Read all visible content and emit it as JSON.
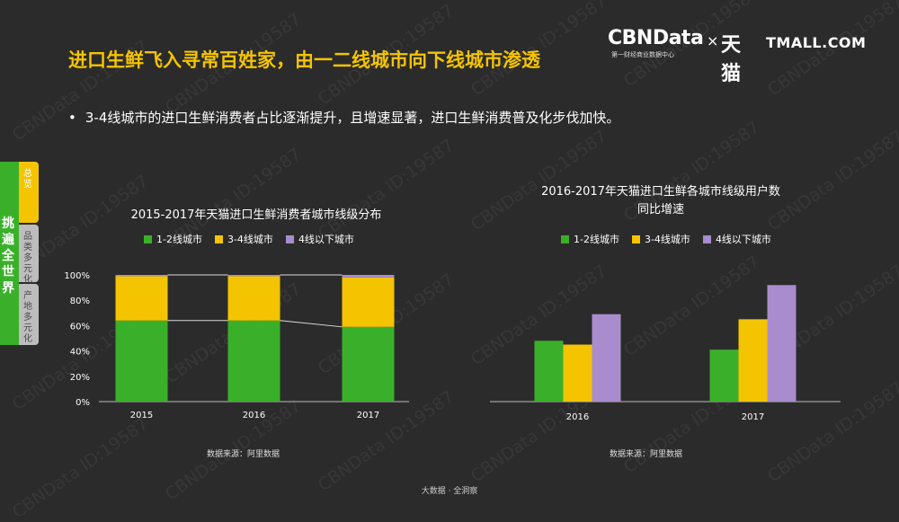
{
  "header": {
    "title": "进口生鲜飞入寻常百姓家，由一二线城市向下线城市渗透",
    "bullet": "3-4线城市的进口生鲜消费者占比逐渐提升，且增速显著，进口生鲜消费普及化步伐加快。",
    "bullet_dot": "•"
  },
  "logo": {
    "cbn": "CBNData",
    "cbn_sub": "第一财经商业数据中心",
    "x": "×",
    "tm": "天猫",
    "tmall": "TMALL.COM"
  },
  "sidebar": {
    "main": "挑遍全世界",
    "tabs": [
      "总览",
      "品类多元化",
      "产地多元化"
    ]
  },
  "watermark": "CBNData ID:19587",
  "colors": {
    "green": "#3ab02a",
    "yellow": "#f5c400",
    "purple": "#a98ccd",
    "title": "#f5c400"
  },
  "chart_data": [
    {
      "type": "bar",
      "stacked": true,
      "title": "2015-2017年天猫进口生鲜消费者城市线级分布",
      "categories": [
        "2015",
        "2016",
        "2017"
      ],
      "series": [
        {
          "name": "1-2线城市",
          "values": [
            64,
            64,
            59
          ]
        },
        {
          "name": "3-4线城市",
          "values": [
            35,
            35,
            39
          ]
        },
        {
          "name": "4线以下城市",
          "values": [
            1,
            1,
            2
          ]
        }
      ],
      "y_ticks": [
        "0%",
        "20%",
        "40%",
        "60%",
        "80%",
        "100%"
      ],
      "ylim": [
        0,
        100
      ],
      "source": "数据来源：阿里数据"
    },
    {
      "type": "bar",
      "title_lines": [
        "2016-2017年天猫进口生鲜各城市线级用户数",
        "同比增速"
      ],
      "categories": [
        "2016",
        "2017"
      ],
      "series": [
        {
          "name": "1-2线城市",
          "values": [
            48,
            41
          ]
        },
        {
          "name": "3-4线城市",
          "values": [
            45,
            65
          ]
        },
        {
          "name": "4线以下城市",
          "values": [
            69,
            92
          ]
        }
      ],
      "ylim": [
        0,
        100
      ],
      "source": "数据来源：阿里数据"
    }
  ],
  "footer": "大数据 · 全洞察"
}
